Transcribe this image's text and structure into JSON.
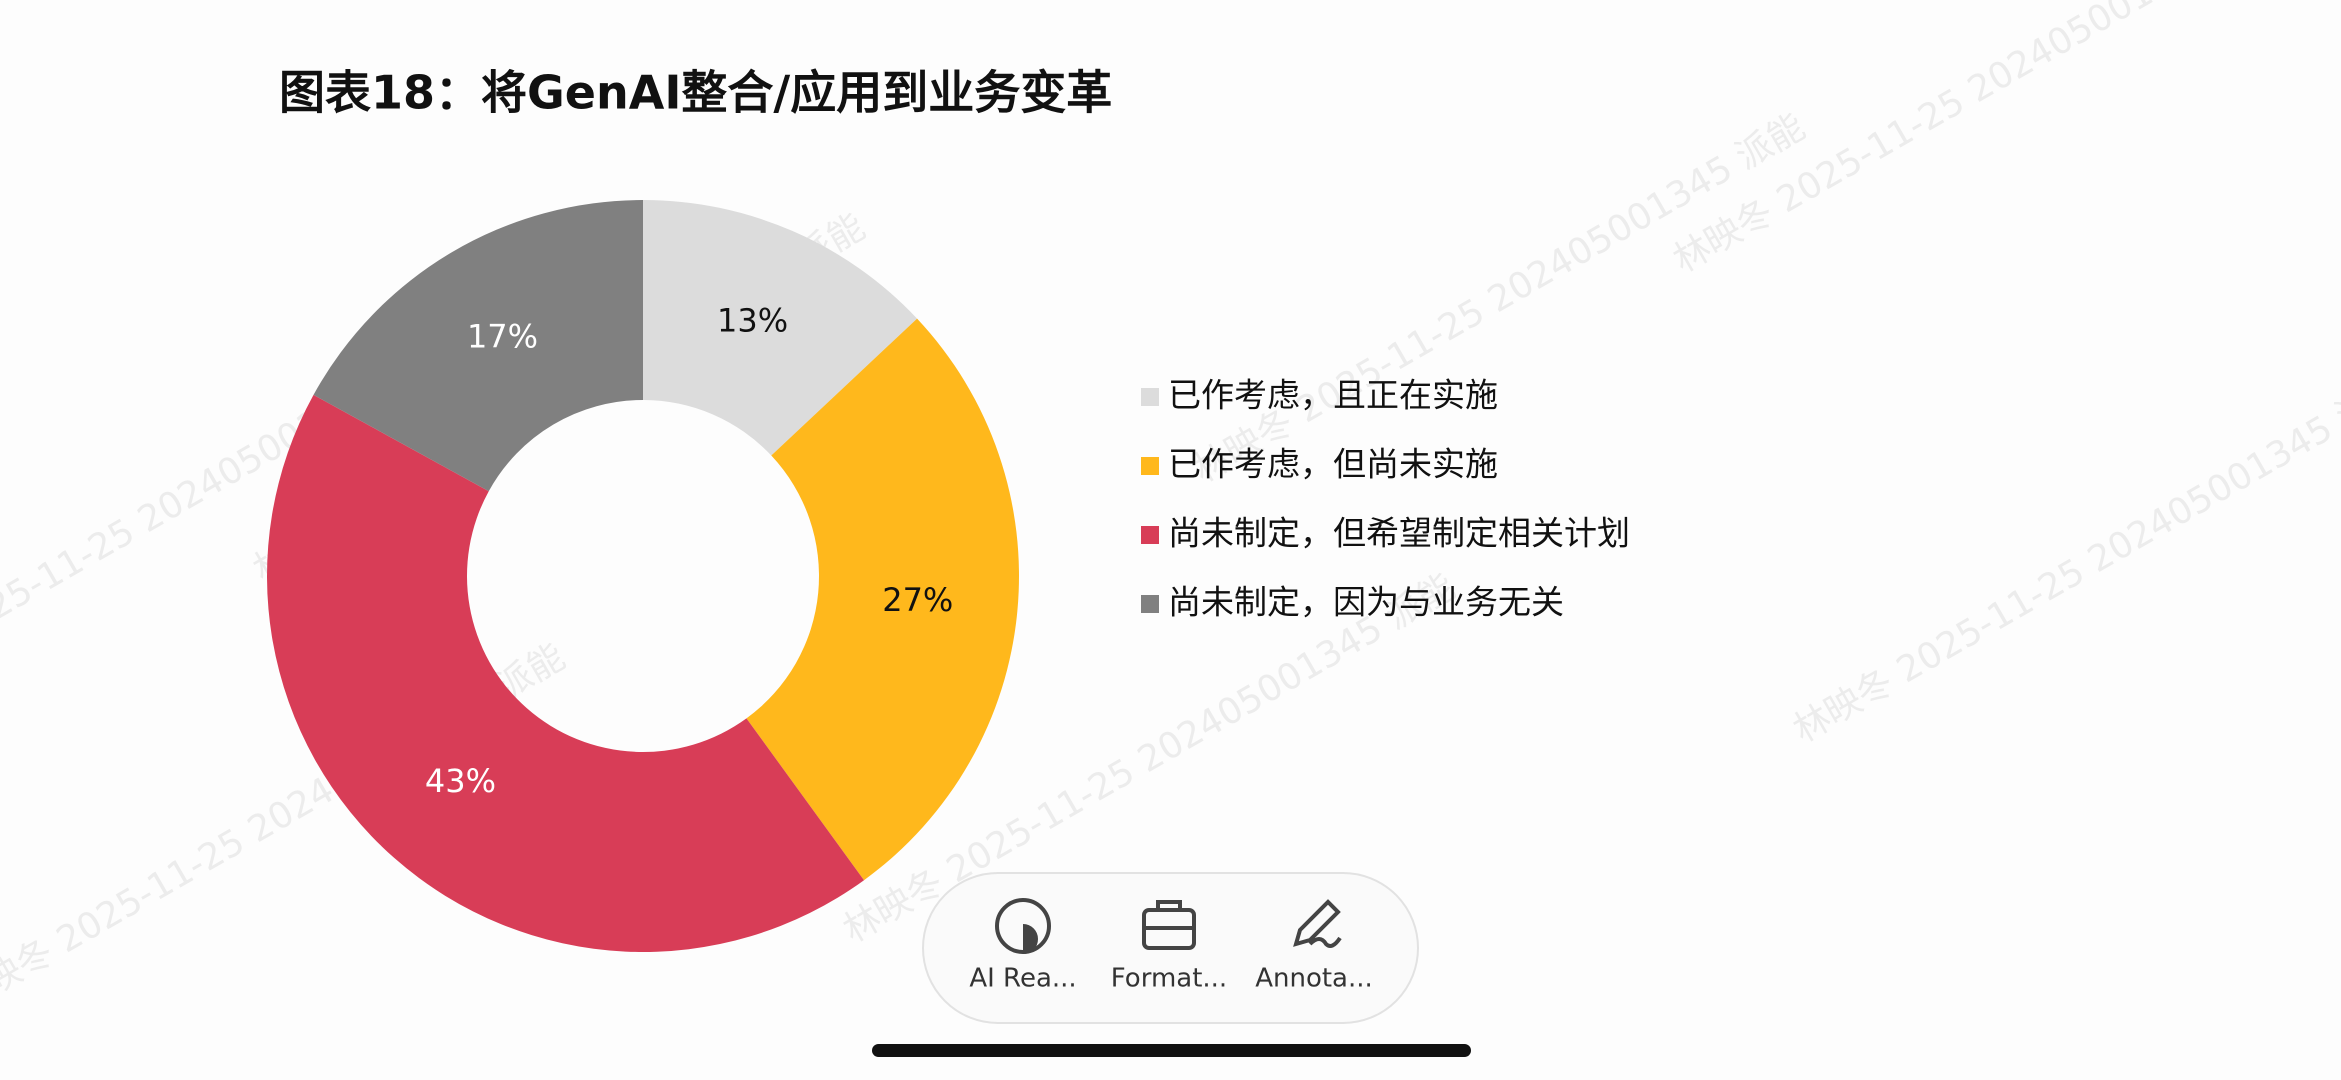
{
  "chart_data": {
    "type": "pie",
    "title": "图表18：将GenAI整合/应用到业务变革",
    "categories": [
      "已作考虑，且正在实施",
      "已作考虑，但尚未实施",
      "尚未制定，但希望制定相关计划",
      "尚未制定，因为与业务无关"
    ],
    "values": [
      13,
      27,
      43,
      17
    ],
    "value_labels": [
      "13%",
      "27%",
      "43%",
      "17%"
    ],
    "colors": [
      "#dcdcdc",
      "#ffb81c",
      "#d83d57",
      "#808080"
    ],
    "legend": "right"
  },
  "toolbar": {
    "items": [
      "AI Rea...",
      "Format...",
      "Annota..."
    ]
  },
  "watermark": "林映冬 2025-11-25 202405001345 派能"
}
